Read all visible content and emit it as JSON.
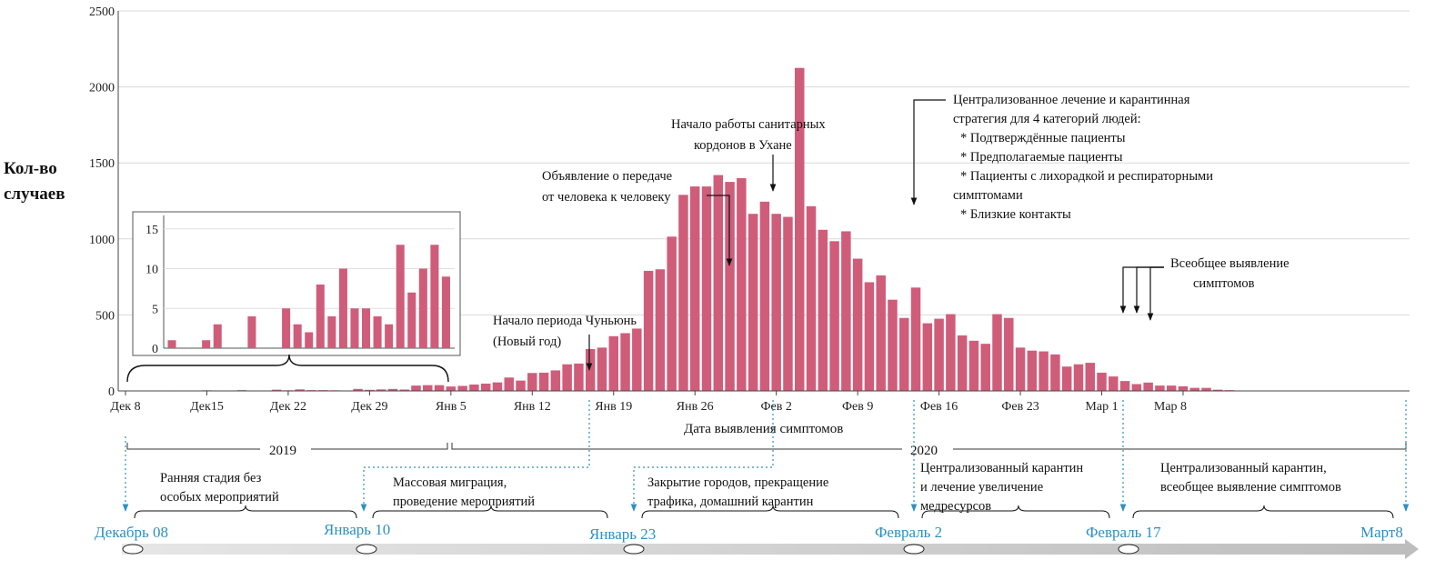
{
  "chart_data": {
    "type": "bar",
    "ylabel": [
      "Кол-во",
      "случаев"
    ],
    "xlabel": "Дата выявления симптомов",
    "ylim": [
      0,
      2500
    ],
    "yticks": [
      0,
      500,
      1000,
      1500,
      2000,
      2500
    ],
    "bar_color": "#cf5d7a",
    "x_start": "Дек 8",
    "x_tick_labels": [
      "Дек 8",
      "Дек15",
      "Дек 22",
      "Дек 29",
      "Янв 5",
      "Янв 12",
      "Янв 19",
      "Янв 26",
      "Фев  2",
      "Фев 9",
      "Фев 16",
      "Фев 23",
      "Мар 1",
      "Мар 8"
    ],
    "values": [
      1,
      0,
      0,
      1,
      3,
      0,
      0,
      4,
      0,
      0,
      5,
      3,
      2,
      8,
      4,
      10,
      5,
      5,
      4,
      3,
      13,
      7,
      10,
      13,
      9,
      35,
      38,
      38,
      29,
      33,
      42,
      48,
      56,
      88,
      68,
      118,
      120,
      135,
      175,
      180,
      275,
      285,
      360,
      380,
      410,
      790,
      800,
      1015,
      1290,
      1345,
      1345,
      1420,
      1375,
      1400,
      1165,
      1245,
      1165,
      1145,
      2125,
      1215,
      1060,
      985,
      1050,
      870,
      715,
      760,
      600,
      480,
      680,
      445,
      475,
      505,
      365,
      330,
      310,
      505,
      480,
      285,
      265,
      260,
      240,
      160,
      175,
      185,
      120,
      95,
      65,
      45,
      55,
      35,
      35,
      30,
      20,
      20,
      8,
      5,
      2,
      2
    ],
    "inset": {
      "yticks": [
        0,
        5,
        10,
        15
      ],
      "ylim": [
        0,
        16
      ],
      "values": [
        1,
        0,
        0,
        1,
        3,
        0,
        0,
        4,
        0,
        0,
        5,
        3,
        2,
        8,
        4,
        10,
        5,
        5,
        4,
        3,
        13,
        7,
        10,
        13,
        9
      ]
    },
    "year_labels": [
      "2019",
      "2020"
    ],
    "annotations": [
      {
        "lines": [
          "Начало периода Чуньюнь",
          "(Новый год)"
        ]
      },
      {
        "lines": [
          "Объявление о передаче",
          "от человека к человеку"
        ]
      },
      {
        "lines": [
          "Начало работы санитарных",
          "кордонов в Ухане"
        ]
      },
      {
        "lines": [
          "Централизованное лечение и карантинная",
          "стратегия для 4 категорий людей:",
          "* Подтверждённые пациенты",
          "* Предполагаемые пациенты",
          "* Пациенты с лихорадкой и респираторными",
          "симптомами",
          "* Близкие контакты"
        ]
      },
      {
        "lines": [
          "Всеобщее выявление",
          "симптомов"
        ]
      }
    ]
  },
  "timeline": {
    "dates": [
      "Декабрь 08",
      "Январь 10",
      "Январь 23",
      "Февраль 2",
      "Февраль 17",
      "Март8"
    ],
    "phases": [
      {
        "lines": [
          "Ранняя стадия без",
          "особых мероприятий"
        ]
      },
      {
        "lines": [
          "Массовая миграция,",
          "проведение мероприятий"
        ]
      },
      {
        "lines": [
          "Закрытие городов, прекращение",
          "трафика, домашний карантин"
        ]
      },
      {
        "lines": [
          "Централизованный карантин",
          "и лечение увеличение",
          "медресурсов"
        ]
      },
      {
        "lines": [
          "Централизованный карантин,",
          "всеобщее выявление симптомов"
        ]
      }
    ]
  }
}
